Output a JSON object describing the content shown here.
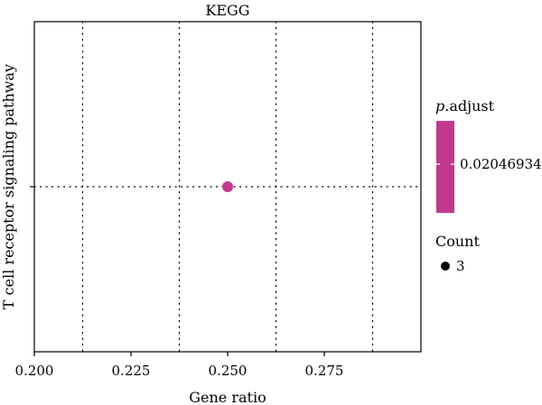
{
  "chart_data": {
    "type": "scatter",
    "title": "KEGG",
    "xlabel": "Gene ratio",
    "ylabel": "",
    "categories": [
      "T cell receptor signaling pathway"
    ],
    "xlim": [
      0.2,
      0.3
    ],
    "xticks": [
      "0.200",
      "0.225",
      "0.250",
      "0.275"
    ],
    "xtick_values": [
      0.2,
      0.225,
      0.25,
      0.275
    ],
    "grid": "dotted",
    "points": [
      {
        "category": "T cell receptor signaling pathway",
        "x": 0.25,
        "count": 3,
        "p_adjust": 0.02046934,
        "color": "#c0398f"
      }
    ],
    "legend": {
      "color_title_italic": "p",
      "color_title_rest": ".adjust",
      "color_label": "0.02046934",
      "color": "#c0398f",
      "size_title": "Count",
      "size_label": "3",
      "placement": "right"
    }
  }
}
